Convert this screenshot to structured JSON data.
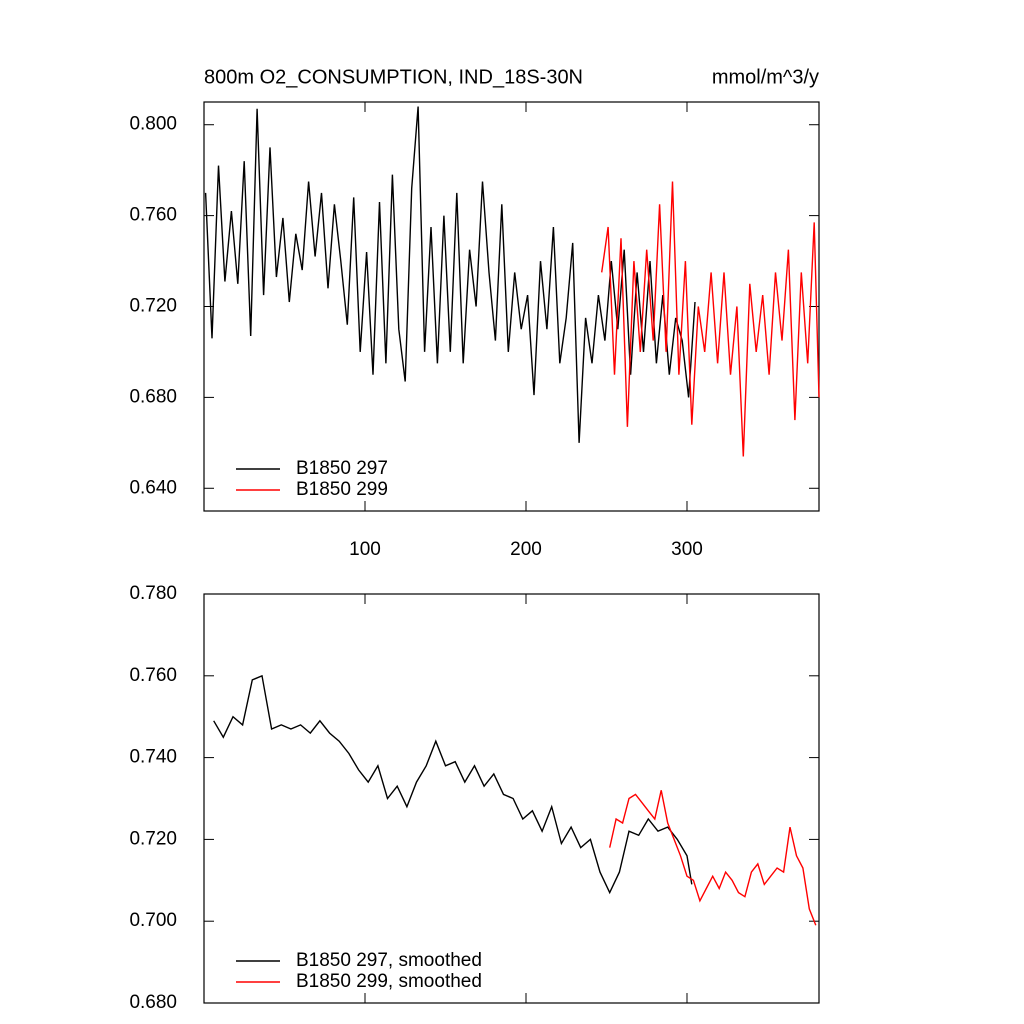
{
  "chart_data": [
    {
      "type": "line",
      "title": "800m O2_CONSUMPTION, IND_18S-30N",
      "units": "mmol/m^3/y",
      "xlim": [
        0,
        382
      ],
      "xticks": [
        100,
        200,
        300
      ],
      "ylim": [
        0.63,
        0.81
      ],
      "yticks": [
        {
          "value": 0.64,
          "label": "0.640"
        },
        {
          "value": 0.68,
          "label": "0.680"
        },
        {
          "value": 0.72,
          "label": "0.720"
        },
        {
          "value": 0.76,
          "label": "0.760"
        },
        {
          "value": 0.8,
          "label": "0.800"
        }
      ],
      "legend": "lower left",
      "series": [
        {
          "name": "B1850 297",
          "color": "#000000",
          "x": [
            1,
            5,
            9,
            13,
            17,
            21,
            25,
            29,
            33,
            37,
            41,
            45,
            49,
            53,
            57,
            61,
            65,
            69,
            73,
            77,
            81,
            85,
            89,
            93,
            97,
            101,
            105,
            109,
            113,
            117,
            121,
            125,
            129,
            133,
            137,
            141,
            145,
            149,
            153,
            157,
            161,
            165,
            169,
            173,
            177,
            181,
            185,
            189,
            193,
            197,
            201,
            205,
            209,
            213,
            217,
            221,
            225,
            229,
            233,
            237,
            241,
            245,
            249,
            253,
            257,
            261,
            265,
            269,
            273,
            277,
            281,
            285,
            289,
            293,
            297,
            301,
            305
          ],
          "values": [
            0.77,
            0.706,
            0.782,
            0.731,
            0.762,
            0.73,
            0.784,
            0.707,
            0.807,
            0.725,
            0.79,
            0.733,
            0.759,
            0.722,
            0.752,
            0.736,
            0.775,
            0.742,
            0.77,
            0.728,
            0.765,
            0.74,
            0.712,
            0.768,
            0.7,
            0.744,
            0.69,
            0.766,
            0.695,
            0.778,
            0.71,
            0.687,
            0.772,
            0.808,
            0.7,
            0.755,
            0.695,
            0.76,
            0.7,
            0.77,
            0.695,
            0.745,
            0.72,
            0.775,
            0.735,
            0.705,
            0.765,
            0.7,
            0.735,
            0.71,
            0.725,
            0.681,
            0.74,
            0.71,
            0.755,
            0.695,
            0.715,
            0.748,
            0.66,
            0.715,
            0.695,
            0.725,
            0.705,
            0.74,
            0.71,
            0.745,
            0.69,
            0.735,
            0.7,
            0.74,
            0.695,
            0.725,
            0.69,
            0.715,
            0.705,
            0.68,
            0.722
          ]
        },
        {
          "name": "B1850 299",
          "color": "#ff0000",
          "x": [
            247,
            251,
            255,
            259,
            263,
            267,
            271,
            275,
            279,
            283,
            287,
            291,
            295,
            299,
            303,
            307,
            311,
            315,
            319,
            323,
            327,
            331,
            335,
            339,
            343,
            347,
            351,
            355,
            359,
            363,
            367,
            371,
            375,
            379,
            382
          ],
          "values": [
            0.735,
            0.755,
            0.69,
            0.75,
            0.667,
            0.74,
            0.7,
            0.745,
            0.705,
            0.765,
            0.7,
            0.775,
            0.69,
            0.74,
            0.668,
            0.72,
            0.7,
            0.735,
            0.695,
            0.735,
            0.69,
            0.72,
            0.654,
            0.73,
            0.7,
            0.725,
            0.69,
            0.735,
            0.705,
            0.745,
            0.67,
            0.735,
            0.695,
            0.757,
            0.68
          ]
        }
      ]
    },
    {
      "type": "line",
      "xlim": [
        0,
        382
      ],
      "xticks": [
        100,
        200,
        300
      ],
      "ylim": [
        0.68,
        0.78
      ],
      "yticks": [
        {
          "value": 0.68,
          "label": "0.680"
        },
        {
          "value": 0.7,
          "label": "0.700"
        },
        {
          "value": 0.72,
          "label": "0.720"
        },
        {
          "value": 0.74,
          "label": "0.740"
        },
        {
          "value": 0.76,
          "label": "0.760"
        },
        {
          "value": 0.78,
          "label": "0.780"
        }
      ],
      "legend": "lower left",
      "series": [
        {
          "name": "B1850 297, smoothed",
          "color": "#000000",
          "x": [
            6,
            12,
            18,
            24,
            30,
            36,
            42,
            48,
            54,
            60,
            66,
            72,
            78,
            84,
            90,
            96,
            102,
            108,
            114,
            120,
            126,
            132,
            138,
            144,
            150,
            156,
            162,
            168,
            174,
            180,
            186,
            192,
            198,
            204,
            210,
            216,
            222,
            228,
            234,
            240,
            246,
            252,
            258,
            264,
            270,
            276,
            282,
            288,
            294,
            300,
            303
          ],
          "values": [
            0.749,
            0.745,
            0.75,
            0.748,
            0.759,
            0.76,
            0.747,
            0.748,
            0.747,
            0.748,
            0.746,
            0.749,
            0.746,
            0.744,
            0.741,
            0.737,
            0.734,
            0.738,
            0.73,
            0.733,
            0.728,
            0.734,
            0.738,
            0.744,
            0.738,
            0.739,
            0.734,
            0.738,
            0.733,
            0.736,
            0.731,
            0.73,
            0.725,
            0.727,
            0.722,
            0.728,
            0.719,
            0.723,
            0.718,
            0.72,
            0.712,
            0.707,
            0.712,
            0.722,
            0.721,
            0.725,
            0.722,
            0.723,
            0.72,
            0.716,
            0.709
          ]
        },
        {
          "name": "B1850 299, smoothed",
          "color": "#ff0000",
          "x": [
            252,
            256,
            260,
            264,
            268,
            272,
            276,
            280,
            284,
            288,
            292,
            296,
            300,
            304,
            308,
            312,
            316,
            320,
            324,
            328,
            332,
            336,
            340,
            344,
            348,
            352,
            356,
            360,
            364,
            368,
            372,
            376,
            380
          ],
          "values": [
            0.718,
            0.725,
            0.724,
            0.73,
            0.731,
            0.729,
            0.727,
            0.725,
            0.732,
            0.724,
            0.72,
            0.716,
            0.711,
            0.71,
            0.705,
            0.708,
            0.711,
            0.708,
            0.712,
            0.71,
            0.707,
            0.706,
            0.712,
            0.714,
            0.709,
            0.711,
            0.713,
            0.712,
            0.723,
            0.716,
            0.713,
            0.703,
            0.699
          ]
        }
      ]
    }
  ]
}
